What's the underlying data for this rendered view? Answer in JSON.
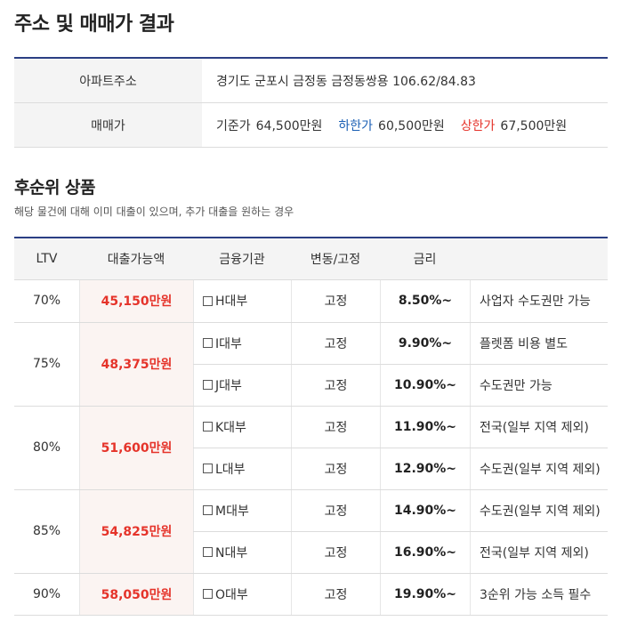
{
  "page_title": "주소 및 매매가 결과",
  "info": {
    "address_label": "아파트주소",
    "address_value": "경기도 군포시 금정동 금정동쌍용 106.62/84.83",
    "price_label": "매매가",
    "base_label": "기준가",
    "base_value": "64,500만원",
    "low_label": "하한가",
    "low_value": "60,500만원",
    "high_label": "상한가",
    "high_value": "67,500만원"
  },
  "section": {
    "title": "후순위 상품",
    "description": "해당 물건에 대해 이미 대출이 있으며, 추가 대출을 원하는 경우"
  },
  "table": {
    "headers": [
      "LTV",
      "대출가능액",
      "금융기관",
      "변동/고정",
      "금리",
      ""
    ],
    "groups": [
      {
        "ltv": "70%",
        "amount": "45,150만원",
        "rows": [
          {
            "institution": "H대부",
            "type": "고정",
            "rate": "8.50%~",
            "note": "사업자 수도권만 가능"
          }
        ]
      },
      {
        "ltv": "75%",
        "amount": "48,375만원",
        "rows": [
          {
            "institution": "I대부",
            "type": "고정",
            "rate": "9.90%~",
            "note": "플렛폼 비용 별도"
          },
          {
            "institution": "J대부",
            "type": "고정",
            "rate": "10.90%~",
            "note": "수도권만 가능"
          }
        ]
      },
      {
        "ltv": "80%",
        "amount": "51,600만원",
        "rows": [
          {
            "institution": "K대부",
            "type": "고정",
            "rate": "11.90%~",
            "note": "전국(일부 지역 제외)"
          },
          {
            "institution": "L대부",
            "type": "고정",
            "rate": "12.90%~",
            "note": "수도권(일부 지역 제외)"
          }
        ]
      },
      {
        "ltv": "85%",
        "amount": "54,825만원",
        "rows": [
          {
            "institution": "M대부",
            "type": "고정",
            "rate": "14.90%~",
            "note": "수도권(일부 지역 제외)"
          },
          {
            "institution": "N대부",
            "type": "고정",
            "rate": "16.90%~",
            "note": "전국(일부 지역 제외)"
          }
        ]
      },
      {
        "ltv": "90%",
        "amount": "58,050만원",
        "rows": [
          {
            "institution": "O대부",
            "type": "고정",
            "rate": "19.90%~",
            "note": "3순위 가능 소득 필수"
          }
        ]
      }
    ]
  }
}
